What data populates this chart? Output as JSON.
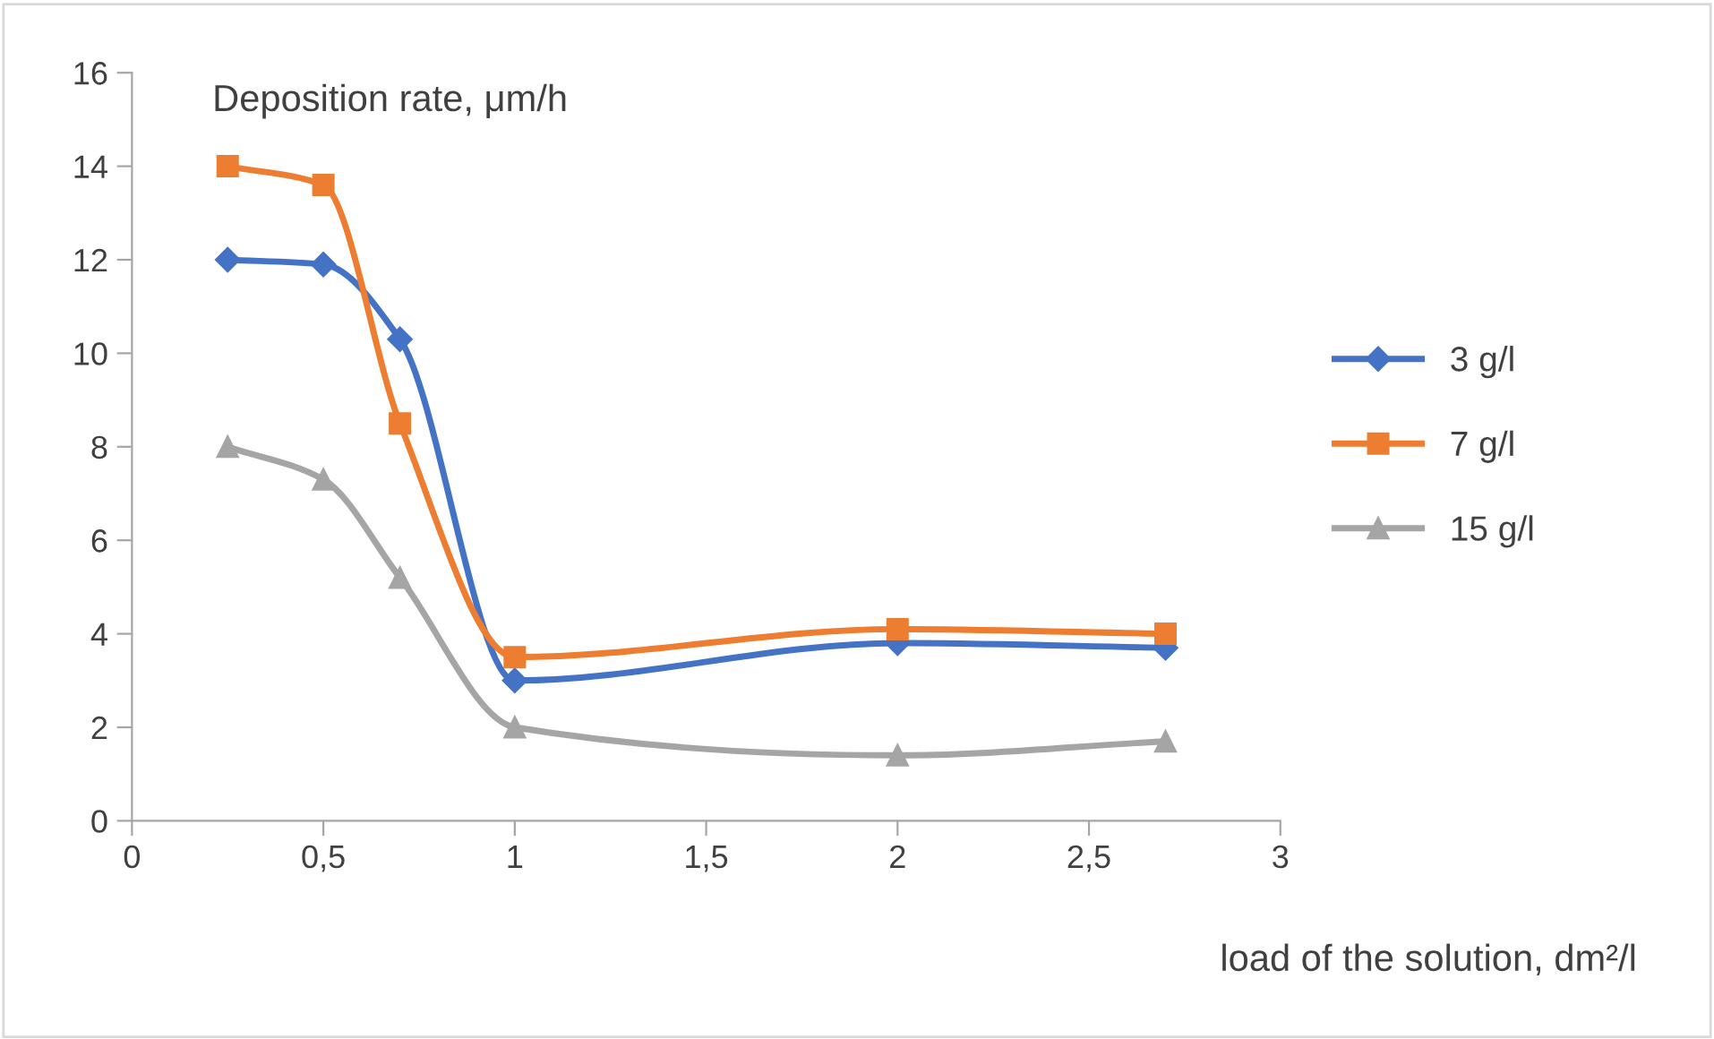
{
  "chart_data": {
    "type": "line",
    "ylabel": "Deposition rate, μm/h",
    "xlabel": "load of the solution, dm²/l",
    "x": [
      0.25,
      0.5,
      0.7,
      1,
      2,
      2.7
    ],
    "series": [
      {
        "name": "3 g/l",
        "color": "#4472c4",
        "marker": "diamond",
        "values": [
          12,
          11.9,
          10.3,
          3,
          3.8,
          3.7
        ]
      },
      {
        "name": "7 g/l",
        "color": "#ed7d31",
        "marker": "square",
        "values": [
          14,
          13.6,
          8.5,
          3.5,
          4.1,
          4.0
        ]
      },
      {
        "name": "15 g/l",
        "color": "#a5a5a5",
        "marker": "triangle",
        "values": [
          8,
          7.3,
          5.2,
          2.0,
          1.4,
          1.7
        ]
      }
    ],
    "xlim": [
      0,
      3
    ],
    "ylim": [
      0,
      16
    ],
    "xticks": [
      0,
      {
        "value": 0.5,
        "label": "0,5"
      },
      1,
      {
        "value": 1.5,
        "label": "1,5"
      },
      2,
      {
        "value": 2.5,
        "label": "2,5"
      },
      3
    ],
    "yticks": [
      0,
      2,
      4,
      6,
      8,
      10,
      12,
      14,
      16
    ],
    "grid": false,
    "legend": "right",
    "line_style": "solid"
  }
}
